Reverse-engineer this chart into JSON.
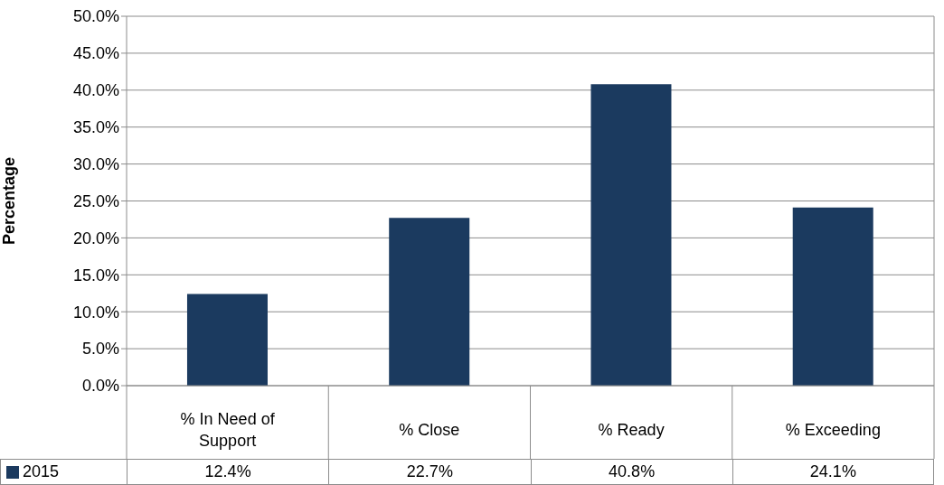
{
  "chart_data": {
    "type": "bar",
    "ylabel": "Percentage",
    "categories": [
      "% In Need of Support",
      "% Close",
      "% Ready",
      "% Exceeding"
    ],
    "series": [
      {
        "name": "2015",
        "color": "#1b3a5f",
        "values": [
          12.4,
          22.7,
          40.8,
          24.1
        ],
        "value_labels": [
          "12.4%",
          "22.7%",
          "40.8%",
          "24.1%"
        ]
      }
    ],
    "ylim": [
      0,
      50
    ],
    "yticks": [
      {
        "value": 0,
        "label": "0.0%"
      },
      {
        "value": 5,
        "label": "5.0%"
      },
      {
        "value": 10,
        "label": "10.0%"
      },
      {
        "value": 15,
        "label": "15.0%"
      },
      {
        "value": 20,
        "label": "20.0%"
      },
      {
        "value": 25,
        "label": "25.0%"
      },
      {
        "value": 30,
        "label": "30.0%"
      },
      {
        "value": 35,
        "label": "35.0%"
      },
      {
        "value": 40,
        "label": "40.0%"
      },
      {
        "value": 45,
        "label": "45.0%"
      },
      {
        "value": 50,
        "label": "50.0%"
      }
    ],
    "grid": "y",
    "legend": "bottom left"
  }
}
